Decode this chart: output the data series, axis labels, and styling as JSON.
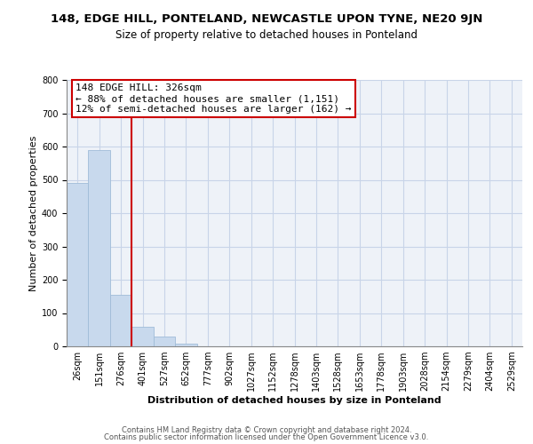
{
  "title_line1": "148, EDGE HILL, PONTELAND, NEWCASTLE UPON TYNE, NE20 9JN",
  "title_line2": "Size of property relative to detached houses in Ponteland",
  "xlabel": "Distribution of detached houses by size in Ponteland",
  "ylabel": "Number of detached properties",
  "bar_labels": [
    "26sqm",
    "151sqm",
    "276sqm",
    "401sqm",
    "527sqm",
    "652sqm",
    "777sqm",
    "902sqm",
    "1027sqm",
    "1152sqm",
    "1278sqm",
    "1403sqm",
    "1528sqm",
    "1653sqm",
    "1778sqm",
    "1903sqm",
    "2028sqm",
    "2154sqm",
    "2279sqm",
    "2404sqm",
    "2529sqm"
  ],
  "bar_heights": [
    490,
    590,
    155,
    60,
    30,
    8,
    0,
    0,
    0,
    0,
    0,
    0,
    0,
    0,
    0,
    0,
    0,
    0,
    0,
    0,
    0
  ],
  "bar_color": "#c8d9ed",
  "bar_edge_color": "#a0bcd8",
  "vline_color": "#cc0000",
  "annotation_text_line1": "148 EDGE HILL: 326sqm",
  "annotation_text_line2": "← 88% of detached houses are smaller (1,151)",
  "annotation_text_line3": "12% of semi-detached houses are larger (162) →",
  "box_edge_color": "#cc0000",
  "ylim": [
    0,
    800
  ],
  "yticks": [
    0,
    100,
    200,
    300,
    400,
    500,
    600,
    700,
    800
  ],
  "footer_line1": "Contains HM Land Registry data © Crown copyright and database right 2024.",
  "footer_line2": "Contains public sector information licensed under the Open Government Licence v3.0.",
  "background_color": "#ffffff",
  "grid_color": "#c8d4e8",
  "title1_fontsize": 9.5,
  "title2_fontsize": 8.5,
  "ylabel_fontsize": 8,
  "xlabel_fontsize": 8,
  "tick_fontsize": 7,
  "annot_fontsize": 8,
  "footer_fontsize": 6
}
